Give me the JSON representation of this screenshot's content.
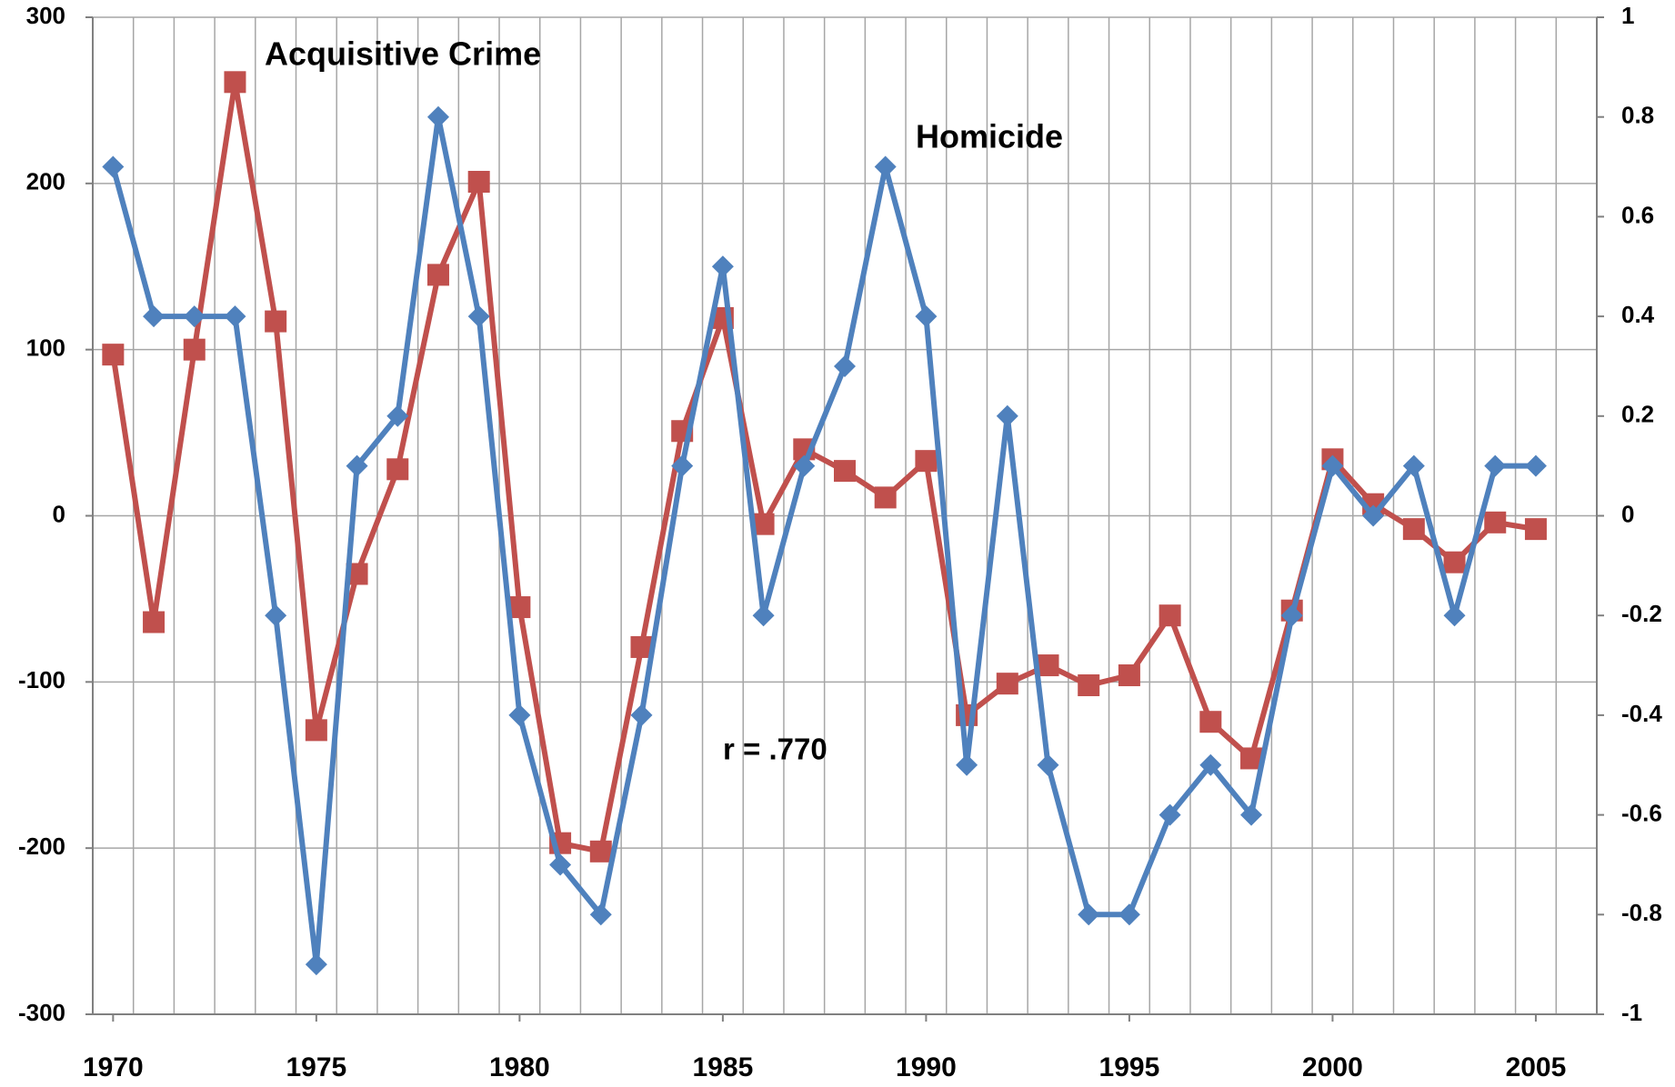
{
  "chart_data": {
    "type": "line",
    "x": [
      1970,
      1971,
      1972,
      1973,
      1974,
      1975,
      1976,
      1977,
      1978,
      1979,
      1980,
      1981,
      1982,
      1983,
      1984,
      1985,
      1986,
      1987,
      1988,
      1989,
      1990,
      1991,
      1992,
      1993,
      1994,
      1995,
      1996,
      1997,
      1998,
      1999,
      2000,
      2001,
      2002,
      2003,
      2004,
      2005
    ],
    "series": [
      {
        "name": "Acquisitive Crime",
        "color": "#c0504d",
        "marker": "square",
        "values": [
          97,
          -64,
          100,
          261,
          117,
          -129,
          -35,
          28,
          145,
          201,
          -55,
          -197,
          -202,
          -79,
          51,
          119,
          -5,
          40,
          27,
          11,
          33,
          -120,
          -101,
          -90,
          -102,
          -96,
          -60,
          -124,
          -146,
          -57,
          34,
          7,
          -8,
          -28,
          -4,
          -8
        ]
      },
      {
        "name": "Homicide",
        "color": "#4f81bd",
        "marker": "diamond",
        "axis": "y2",
        "values": [
          0.7,
          0.4,
          0.4,
          0.4,
          -0.2,
          -0.9,
          0.1,
          0.2,
          0.8,
          0.4,
          -0.4,
          -0.7,
          -0.8,
          -0.4,
          0.1,
          0.5,
          -0.2,
          0.1,
          0.3,
          0.7,
          0.4,
          -0.5,
          0.2,
          -0.5,
          -0.8,
          -0.8,
          -0.6,
          -0.5,
          -0.6,
          -0.2,
          0.1,
          0,
          0.1,
          -0.2,
          0.1,
          0.1
        ]
      }
    ],
    "annotations": [
      "r = .770"
    ],
    "xlim": [
      1969.5,
      2006.5
    ],
    "xticks": [
      1970,
      1975,
      1980,
      1985,
      1990,
      1995,
      2000,
      2005
    ],
    "ylim": [
      -300,
      300
    ],
    "yticks": [
      -300,
      -200,
      -100,
      0,
      100,
      200,
      300
    ],
    "y2lim": [
      -1,
      1
    ],
    "y2ticks": [
      -1,
      -0.8,
      -0.6,
      -0.4,
      -0.2,
      0,
      0.2,
      0.4,
      0.6,
      0.8,
      1
    ],
    "grid": true
  }
}
